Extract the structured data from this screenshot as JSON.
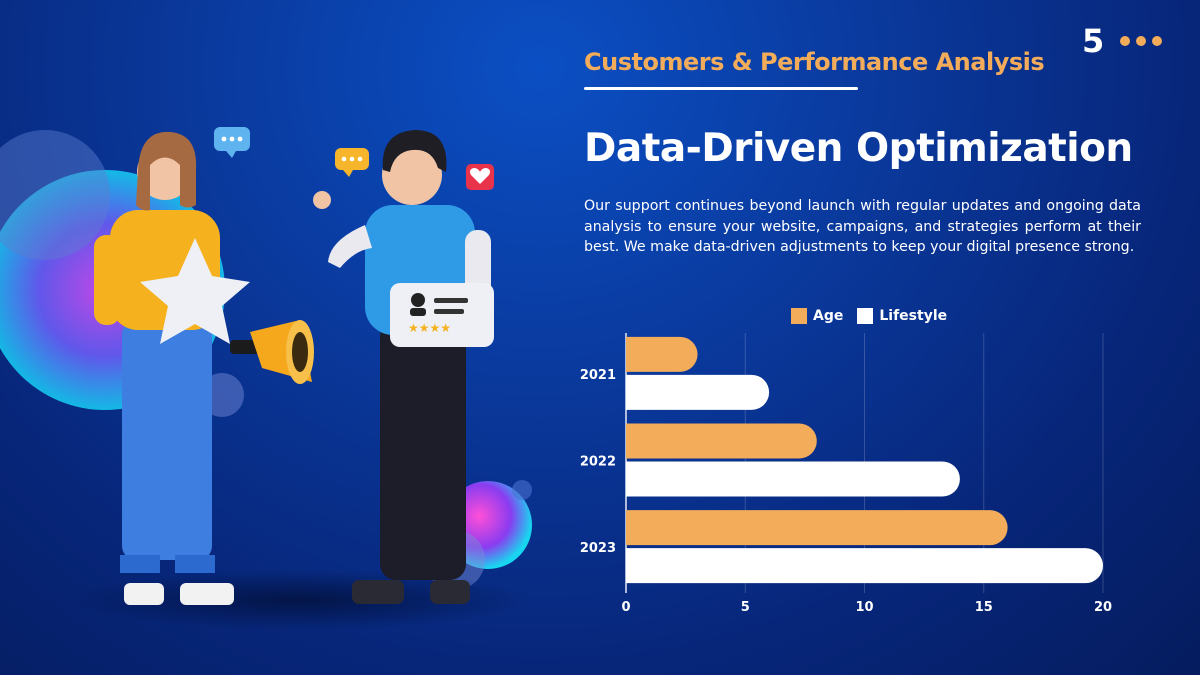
{
  "header": {
    "page_number": "5",
    "subtitle": "Customers & Performance Analysis",
    "title": "Data-Driven Optimization",
    "body": "Our support continues beyond launch with regular updates and ongoing data analysis to ensure your website, campaigns, and strategies perform at their best. We make data-driven adjustments to keep your digital presence strong."
  },
  "colors": {
    "accent": "#f3ac5a",
    "series_age": "#f3ac5a",
    "series_lifestyle": "#ffffff",
    "background": "#0a3a9e"
  },
  "illustration": {
    "icons": [
      "chat-bubble-icon",
      "chat-bubble-icon",
      "heart-icon",
      "star-icon",
      "megaphone-icon",
      "profile-card-icon"
    ]
  },
  "chart_data": {
    "type": "bar",
    "orientation": "horizontal",
    "categories": [
      "2021",
      "2022",
      "2023"
    ],
    "series": [
      {
        "name": "Age",
        "values": [
          3,
          8,
          16
        ]
      },
      {
        "name": "Lifestyle",
        "values": [
          6,
          14,
          20
        ]
      }
    ],
    "xlim": [
      0,
      20
    ],
    "xticks": [
      0,
      5,
      10,
      15,
      20
    ],
    "grid": true,
    "legend": "top"
  }
}
